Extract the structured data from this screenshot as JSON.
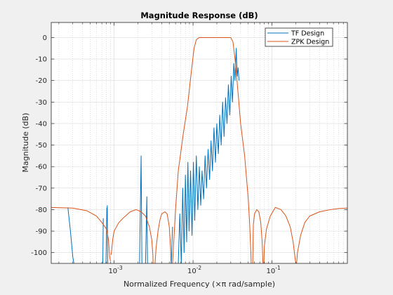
{
  "chart_data": {
    "type": "line",
    "title": "Magnitude Response (dB)",
    "xlabel": "Normalized Frequency (×π rad/sample)",
    "ylabel": "Magnitude (dB)",
    "xscale": "log",
    "xlim": [
      0.00016,
      0.9
    ],
    "ylim": [
      -105,
      7
    ],
    "grid": true,
    "minor_grid": true,
    "legend": "top-right",
    "yticks": [
      0,
      -10,
      -20,
      -30,
      -40,
      -50,
      -60,
      -70,
      -80,
      -90,
      -100
    ],
    "ytick_labels": [
      "0",
      "-10",
      "-20",
      "-30",
      "-40",
      "-50",
      "-60",
      "-70",
      "-80",
      "-90",
      "-100"
    ],
    "xticks": [
      0.001,
      0.01,
      0.1
    ],
    "xtick_labels": [
      {
        "base": "10",
        "exp": "-3"
      },
      {
        "base": "10",
        "exp": "-2"
      },
      {
        "base": "10",
        "exp": "-1"
      }
    ],
    "colors": {
      "tf": "#0072bd",
      "zpk": "#d95319",
      "axes_bg": "#ffffff",
      "figure_bg": "#f0f0f0"
    },
    "series": [
      {
        "name": "TF Design",
        "color": "#0072bd",
        "segments": [
          [
            [
              0.00026,
              -79
            ],
            [
              0.00028,
              -90
            ],
            [
              0.0003,
              -102
            ],
            [
              0.00031,
              -105
            ]
          ],
          [
            [
              0.00072,
              -105
            ],
            [
              0.00073,
              -84
            ]
          ],
          [
            [
              0.00079,
              -105
            ],
            [
              0.00081,
              -79
            ]
          ],
          [
            [
              0.00082,
              -78
            ],
            [
              0.00083,
              -105
            ]
          ],
          [
            [
              0.0021,
              -105
            ],
            [
              0.0022,
              -55
            ],
            [
              0.00225,
              -105
            ]
          ],
          [
            [
              0.0025,
              -105
            ],
            [
              0.0026,
              -74
            ],
            [
              0.00265,
              -105
            ]
          ],
          [
            [
              0.0053,
              -105
            ],
            [
              0.0055,
              -88
            ]
          ],
          [
            [
              0.0065,
              -105
            ],
            [
              0.0068,
              -82
            ],
            [
              0.0071,
              -105
            ],
            [
              0.0074,
              -70
            ],
            [
              0.0077,
              -100
            ],
            [
              0.008,
              -64
            ],
            [
              0.0083,
              -95
            ],
            [
              0.0086,
              -58
            ],
            [
              0.0089,
              -90
            ],
            [
              0.0093,
              -62
            ],
            [
              0.0097,
              -92
            ],
            [
              0.0101,
              -58
            ],
            [
              0.0105,
              -85
            ],
            [
              0.011,
              -55
            ],
            [
              0.0115,
              -80
            ],
            [
              0.012,
              -60
            ],
            [
              0.0125,
              -78
            ],
            [
              0.013,
              -62
            ],
            [
              0.0136,
              -75
            ],
            [
              0.0142,
              -55
            ],
            [
              0.0148,
              -70
            ],
            [
              0.0155,
              -52
            ],
            [
              0.0162,
              -66
            ],
            [
              0.0169,
              -48
            ],
            [
              0.0176,
              -62
            ],
            [
              0.0184,
              -42
            ],
            [
              0.0192,
              -58
            ],
            [
              0.02,
              -40
            ],
            [
              0.0209,
              -54
            ],
            [
              0.0218,
              -36
            ],
            [
              0.0227,
              -50
            ],
            [
              0.0237,
              -30
            ],
            [
              0.0247,
              -46
            ],
            [
              0.0258,
              -28
            ],
            [
              0.0269,
              -40
            ],
            [
              0.028,
              -22
            ],
            [
              0.0292,
              -36
            ],
            [
              0.0304,
              -18
            ],
            [
              0.0316,
              -30
            ],
            [
              0.0328,
              -12
            ],
            [
              0.034,
              -20
            ],
            [
              0.0352,
              -5
            ],
            [
              0.0362,
              -18
            ],
            [
              0.0372,
              -14
            ],
            [
              0.0382,
              -20
            ]
          ]
        ]
      },
      {
        "name": "ZPK Design",
        "color": "#d95319",
        "segments": [
          [
            [
              0.00016,
              -79
            ],
            [
              0.0003,
              -79.3
            ],
            [
              0.00045,
              -80.5
            ],
            [
              0.0006,
              -83
            ],
            [
              0.0007,
              -86
            ],
            [
              0.0008,
              -89
            ],
            [
              0.00085,
              -94
            ],
            [
              0.00088,
              -102
            ],
            [
              0.0009,
              -104
            ]
          ],
          [
            [
              0.00092,
              -101
            ],
            [
              0.00096,
              -94
            ],
            [
              0.001,
              -90
            ],
            [
              0.00115,
              -86
            ],
            [
              0.0013,
              -84
            ],
            [
              0.0016,
              -81
            ],
            [
              0.0019,
              -80
            ],
            [
              0.0022,
              -81
            ],
            [
              0.0025,
              -83
            ],
            [
              0.0028,
              -88
            ],
            [
              0.003,
              -94
            ],
            [
              0.0031,
              -101
            ],
            [
              0.00312,
              -105
            ]
          ],
          [
            [
              0.0033,
              -105
            ],
            [
              0.0034,
              -98
            ],
            [
              0.0036,
              -90
            ],
            [
              0.0038,
              -85
            ],
            [
              0.004,
              -82
            ],
            [
              0.0044,
              -81
            ],
            [
              0.0047,
              -82
            ],
            [
              0.005,
              -88
            ],
            [
              0.0052,
              -98
            ],
            [
              0.00525,
              -105
            ]
          ],
          [
            [
              0.0055,
              -105
            ],
            [
              0.006,
              -80
            ],
            [
              0.0065,
              -62
            ],
            [
              0.0075,
              -45
            ],
            [
              0.0085,
              -32
            ],
            [
              0.0095,
              -16
            ],
            [
              0.0103,
              -5
            ],
            [
              0.011,
              -1
            ],
            [
              0.012,
              0
            ],
            [
              0.015,
              0
            ],
            [
              0.02,
              0
            ],
            [
              0.025,
              0
            ],
            [
              0.03,
              0
            ],
            [
              0.032,
              -2
            ],
            [
              0.034,
              -10
            ],
            [
              0.036,
              -20
            ],
            [
              0.038,
              -30
            ],
            [
              0.04,
              -40
            ],
            [
              0.045,
              -55
            ],
            [
              0.05,
              -75
            ],
            [
              0.052,
              -86
            ],
            [
              0.054,
              -100
            ],
            [
              0.0545,
              -105
            ]
          ],
          [
            [
              0.057,
              -105
            ],
            [
              0.058,
              -87
            ],
            [
              0.06,
              -82
            ],
            [
              0.064,
              -80
            ],
            [
              0.068,
              -81
            ],
            [
              0.072,
              -86
            ],
            [
              0.075,
              -95
            ],
            [
              0.0765,
              -104
            ],
            [
              0.077,
              -105
            ]
          ],
          [
            [
              0.079,
              -105
            ],
            [
              0.08,
              -97
            ],
            [
              0.085,
              -89
            ],
            [
              0.095,
              -83
            ],
            [
              0.11,
              -79
            ],
            [
              0.13,
              -80
            ],
            [
              0.15,
              -83
            ],
            [
              0.17,
              -88
            ],
            [
              0.185,
              -95
            ],
            [
              0.195,
              -102
            ],
            [
              0.2,
              -105
            ]
          ],
          [
            [
              0.205,
              -105
            ],
            [
              0.21,
              -100
            ],
            [
              0.23,
              -92
            ],
            [
              0.26,
              -86
            ],
            [
              0.3,
              -83
            ],
            [
              0.4,
              -81
            ],
            [
              0.55,
              -80
            ],
            [
              0.7,
              -79.5
            ],
            [
              0.9,
              -79.3
            ]
          ]
        ]
      }
    ]
  }
}
